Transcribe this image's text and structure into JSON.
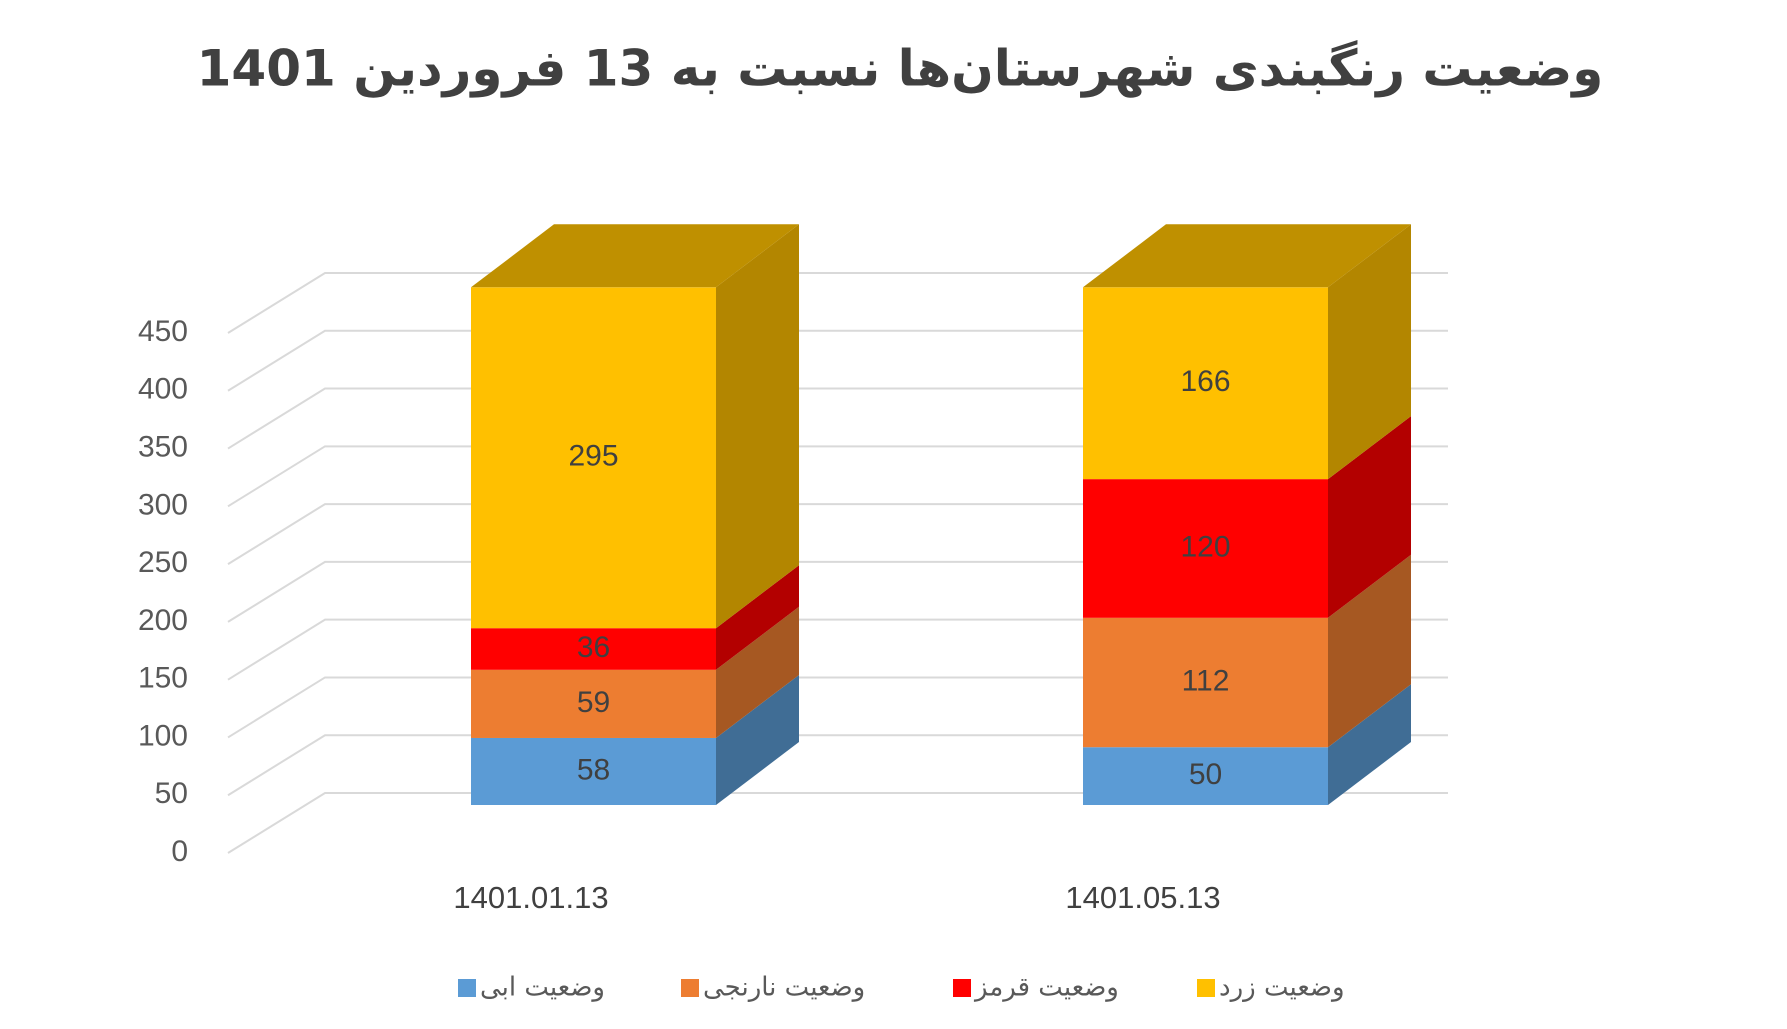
{
  "chart_data": {
    "type": "bar3d_stacked",
    "title": "وضعیت رنگبندی شهرستان‌ها نسبت به 13 فروردین 1401",
    "categories": [
      "1401.01.13",
      "1401.05.13"
    ],
    "series": [
      {
        "name": "وضعیت ابی",
        "color": "#5b9bd5",
        "values": [
          58,
          50
        ]
      },
      {
        "name": "وضعیت نارنجی",
        "color": "#ed7d31",
        "values": [
          59,
          112
        ]
      },
      {
        "name": "وضعیت قرمز",
        "color": "#ff0000",
        "values": [
          36,
          120
        ]
      },
      {
        "name": "وضعیت زرد",
        "color": "#ffc000",
        "values": [
          295,
          166
        ]
      }
    ],
    "ylim": [
      0,
      450
    ],
    "yticks": [
      0,
      50,
      100,
      150,
      200,
      250,
      300,
      350,
      400,
      450
    ],
    "grid": true,
    "legend": "bottom"
  }
}
